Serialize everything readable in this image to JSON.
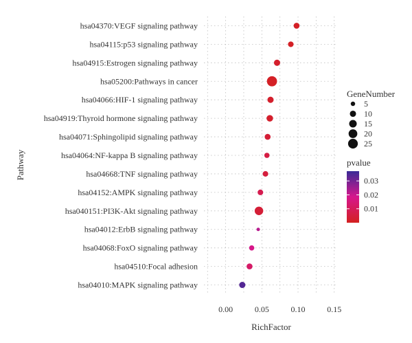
{
  "chart_data": {
    "type": "scatter",
    "xlabel": "RichFactor",
    "ylabel": "Pathway",
    "xlim": [
      -0.03,
      0.155
    ],
    "x_ticks": [
      0.0,
      0.05,
      0.1,
      0.15
    ],
    "x_tick_labels": [
      "0.00",
      "0.05",
      "0.10",
      "0.15"
    ],
    "grid": true,
    "size_legend": {
      "title": "GeneNumber",
      "values": [
        5,
        10,
        15,
        20,
        25
      ],
      "labels": [
        "5",
        "10",
        "15",
        "20",
        "25"
      ]
    },
    "color_legend": {
      "title": "pvalue",
      "range": [
        0,
        0.037
      ],
      "ticks": [
        0.03,
        0.02,
        0.01
      ],
      "tick_labels": [
        "0.03",
        "0.02",
        "0.01"
      ],
      "low_color": "#d42020",
      "mid_color": "#d6178c",
      "high_color": "#3a2a96"
    },
    "points": [
      {
        "pathway": "hsa04370:VEGF signaling pathway",
        "x": 0.098,
        "gene_number": 9,
        "pvalue": 0.001
      },
      {
        "pathway": "hsa04115:p53 signaling pathway",
        "x": 0.09,
        "gene_number": 8,
        "pvalue": 0.001
      },
      {
        "pathway": "hsa04915:Estrogen signaling pathway",
        "x": 0.071,
        "gene_number": 10,
        "pvalue": 0.002
      },
      {
        "pathway": "hsa05200:Pathways in cancer",
        "x": 0.064,
        "gene_number": 27,
        "pvalue": 0.001
      },
      {
        "pathway": "hsa04066:HIF-1 signaling pathway",
        "x": 0.062,
        "gene_number": 10,
        "pvalue": 0.002
      },
      {
        "pathway": "hsa04919:Thyroid hormone signaling pathway",
        "x": 0.061,
        "gene_number": 11,
        "pvalue": 0.002
      },
      {
        "pathway": "hsa04071:Sphingolipid signaling pathway",
        "x": 0.058,
        "gene_number": 9,
        "pvalue": 0.004
      },
      {
        "pathway": "hsa04064:NF-kappa B signaling pathway",
        "x": 0.057,
        "gene_number": 7,
        "pvalue": 0.006
      },
      {
        "pathway": "hsa04668:TNF signaling pathway",
        "x": 0.055,
        "gene_number": 8,
        "pvalue": 0.005
      },
      {
        "pathway": "hsa04152:AMPK signaling pathway",
        "x": 0.048,
        "gene_number": 8,
        "pvalue": 0.008
      },
      {
        "pathway": "hsa040151:PI3K-Akt signaling pathway",
        "x": 0.046,
        "gene_number": 19,
        "pvalue": 0.004
      },
      {
        "pathway": "hsa04012:ErbB signaling pathway",
        "x": 0.045,
        "gene_number": 3,
        "pvalue": 0.022
      },
      {
        "pathway": "hsa04068:FoxO signaling pathway",
        "x": 0.036,
        "gene_number": 7,
        "pvalue": 0.018
      },
      {
        "pathway": "hsa04510:Focal adhesion",
        "x": 0.033,
        "gene_number": 9,
        "pvalue": 0.012
      },
      {
        "pathway": "hsa04010:MAPK signaling pathway",
        "x": 0.023,
        "gene_number": 10,
        "pvalue": 0.034
      }
    ]
  }
}
